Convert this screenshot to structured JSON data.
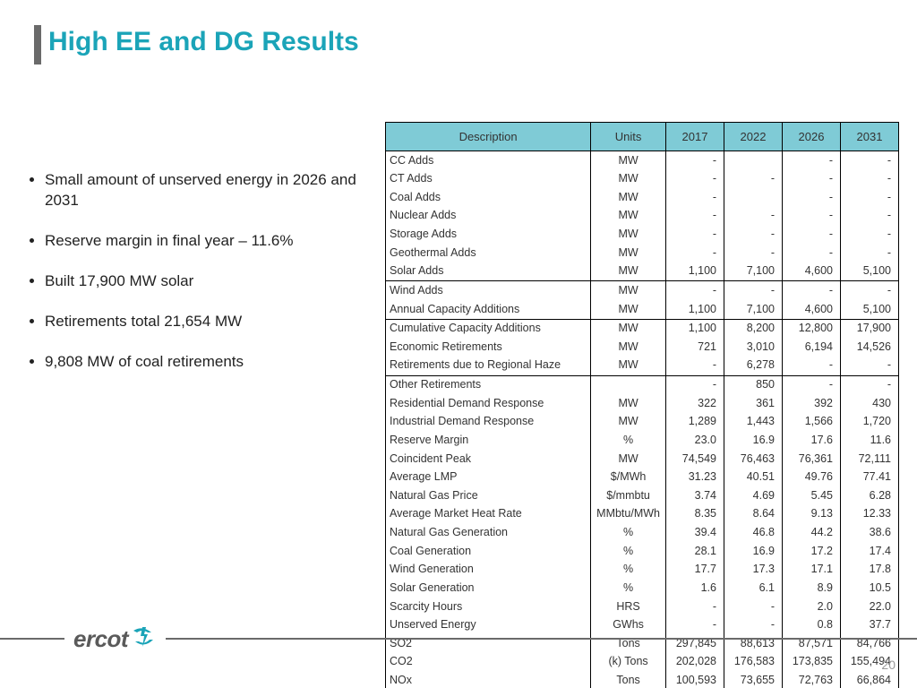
{
  "title": "High EE and DG Results",
  "accent_color": "#1ba4b8",
  "header_bg": "#7fcbd6",
  "bullets": [
    "Small amount of unserved energy in 2026 and 2031",
    "Reserve margin in final year – 11.6%",
    "Built 17,900 MW solar",
    "Retirements total 21,654 MW",
    "9,808 MW of coal retirements"
  ],
  "table": {
    "columns": [
      "Description",
      "Units",
      "2017",
      "2022",
      "2026",
      "2031"
    ],
    "col_widths": [
      "200px",
      "80px",
      "65px",
      "65px",
      "65px",
      "65px"
    ],
    "col_align": [
      "left",
      "center",
      "right",
      "right",
      "right",
      "right"
    ],
    "separator_after": [
      7,
      9,
      12
    ],
    "rows": [
      [
        "CC Adds",
        "MW",
        "-",
        "",
        "-",
        "-"
      ],
      [
        "CT Adds",
        "MW",
        "-",
        "-",
        "-",
        "-"
      ],
      [
        "Coal Adds",
        "MW",
        "-",
        "",
        "-",
        "-"
      ],
      [
        "Nuclear Adds",
        "MW",
        "-",
        "-",
        "-",
        "-"
      ],
      [
        "Storage Adds",
        "MW",
        "-",
        "-",
        "-",
        "-"
      ],
      [
        "Geothermal Adds",
        "MW",
        "-",
        "-",
        "-",
        "-"
      ],
      [
        "Solar Adds",
        "MW",
        "1,100",
        "7,100",
        "4,600",
        "5,100"
      ],
      [
        "Wind Adds",
        "MW",
        "-",
        "-",
        "-",
        "-"
      ],
      [
        "Annual Capacity Additions",
        "MW",
        "1,100",
        "7,100",
        "4,600",
        "5,100"
      ],
      [
        "Cumulative Capacity Additions",
        "MW",
        "1,100",
        "8,200",
        "12,800",
        "17,900"
      ],
      [
        "Economic Retirements",
        "MW",
        "721",
        "3,010",
        "6,194",
        "14,526"
      ],
      [
        "Retirements due to Regional Haze",
        "MW",
        "-",
        "6,278",
        "-",
        "-"
      ],
      [
        "Other Retirements",
        "",
        "-",
        "850",
        "-",
        "-"
      ],
      [
        "Residential Demand Response",
        "MW",
        "322",
        "361",
        "392",
        "430"
      ],
      [
        "Industrial Demand Response",
        "MW",
        "1,289",
        "1,443",
        "1,566",
        "1,720"
      ],
      [
        "Reserve Margin",
        "%",
        "23.0",
        "16.9",
        "17.6",
        "11.6"
      ],
      [
        "Coincident Peak",
        "MW",
        "74,549",
        "76,463",
        "76,361",
        "72,111"
      ],
      [
        "Average LMP",
        "$/MWh",
        "31.23",
        "40.51",
        "49.76",
        "77.41"
      ],
      [
        "Natural Gas Price",
        "$/mmbtu",
        "3.74",
        "4.69",
        "5.45",
        "6.28"
      ],
      [
        "Average Market Heat Rate",
        "MMbtu/MWh",
        "8.35",
        "8.64",
        "9.13",
        "12.33"
      ],
      [
        "Natural Gas Generation",
        "%",
        "39.4",
        "46.8",
        "44.2",
        "38.6"
      ],
      [
        "Coal Generation",
        "%",
        "28.1",
        "16.9",
        "17.2",
        "17.4"
      ],
      [
        "Wind Generation",
        "%",
        "17.7",
        "17.3",
        "17.1",
        "17.8"
      ],
      [
        "Solar Generation",
        "%",
        "1.6",
        "6.1",
        "8.9",
        "10.5"
      ],
      [
        "Scarcity Hours",
        "HRS",
        "-",
        "-",
        "2.0",
        "22.0"
      ],
      [
        "Unserved Energy",
        "GWhs",
        "-",
        "-",
        "0.8",
        "37.7"
      ],
      [
        "SO2",
        "Tons",
        "297,845",
        "88,613",
        "87,571",
        "84,766"
      ],
      [
        "CO2",
        "(k) Tons",
        "202,028",
        "176,583",
        "173,835",
        "155,494"
      ],
      [
        "NOx",
        "Tons",
        "100,593",
        "73,655",
        "72,763",
        "66,864"
      ]
    ]
  },
  "logo_text": "ercot",
  "page_number": "20"
}
